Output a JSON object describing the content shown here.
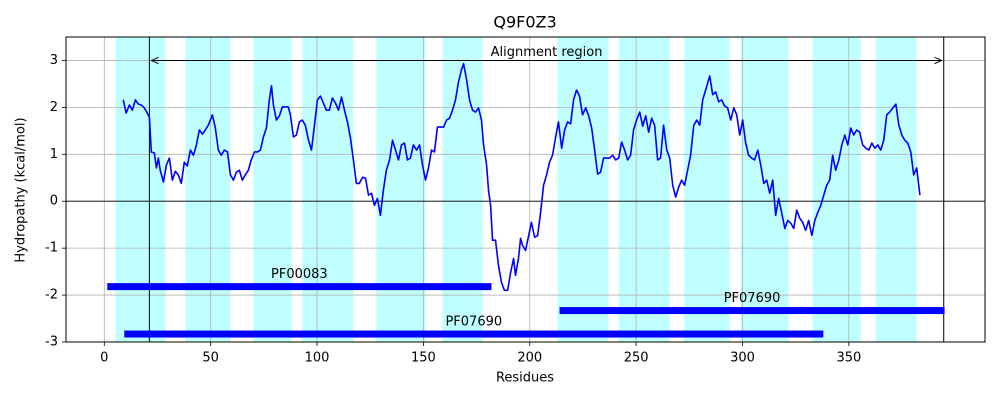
{
  "chart_data": {
    "type": "line",
    "title": "Q9F0Z3",
    "x_label": "Residues",
    "y_label": "Hydropathy (kcal/mol)",
    "xlim": [
      -18,
      414
    ],
    "ylim": [
      -3,
      3.5
    ],
    "xticks": [
      0,
      50,
      100,
      150,
      200,
      250,
      300,
      350
    ],
    "yticks": [
      -3,
      -2,
      -1,
      0,
      1,
      2,
      3
    ],
    "grid": true,
    "hline": 0,
    "region_color": "#bfffff",
    "regions": [
      [
        5.2,
        28.7
      ],
      [
        38.1,
        59.3
      ],
      [
        70.1,
        88
      ],
      [
        93.1,
        117.1
      ],
      [
        127.9,
        151
      ],
      [
        159,
        177.8
      ],
      [
        213,
        237
      ],
      [
        241.8,
        265.8
      ],
      [
        272.6,
        294
      ],
      [
        299.2,
        321.7
      ],
      [
        333,
        355.6
      ],
      [
        362.7,
        381.9
      ]
    ],
    "alignment_region": {
      "label": "Alignment region",
      "start": 21.2,
      "end": 394.6,
      "y": 3
    },
    "domain_color": "#0000ff",
    "domains": [
      {
        "label": "PF00083",
        "start": 1.4,
        "end": 182,
        "y": -1.82
      },
      {
        "label": "PF07690",
        "start": 214,
        "end": 395,
        "y": -2.33
      },
      {
        "label": "PF07690",
        "start": 9.4,
        "end": 338,
        "y": -2.83
      }
    ],
    "x": [
      8.9,
      10.3,
      11.8,
      13.2,
      14.6,
      16.0,
      17.4,
      18.8,
      20.2,
      21.2,
      22.1,
      23.5,
      24.5,
      25.4,
      26.3,
      27.8,
      29.2,
      30.6,
      32.0,
      33.4,
      34.8,
      36.2,
      37.6,
      39.0,
      40.5,
      41.9,
      43.3,
      44.7,
      46.1,
      47.5,
      48.9,
      50.8,
      52.2,
      53.6,
      55.0,
      56.4,
      57.9,
      59.3,
      60.7,
      62.1,
      63.5,
      64.9,
      66.3,
      67.7,
      69.1,
      70.6,
      72.0,
      73.4,
      74.8,
      76.2,
      77.6,
      78.6,
      79.5,
      80.9,
      82.3,
      83.7,
      85.1,
      86.5,
      87.5,
      88.9,
      90.3,
      91.7,
      93.1,
      94.5,
      96.0,
      97.4,
      98.8,
      100.2,
      101.6,
      103.0,
      104.4,
      105.8,
      107.2,
      108.7,
      110.1,
      111.5,
      112.9,
      114.3,
      115.7,
      117.1,
      118.5,
      119.9,
      121.4,
      122.8,
      124.2,
      125.6,
      127.0,
      128.4,
      129.8,
      131.2,
      132.6,
      134.1,
      135.5,
      136.9,
      138.3,
      139.7,
      141.1,
      142.5,
      143.9,
      145.3,
      146.8,
      148.2,
      149.6,
      151.0,
      152.4,
      153.8,
      155.2,
      156.6,
      158.0,
      159.5,
      160.9,
      162.3,
      163.7,
      165.1,
      166.5,
      167.9,
      168.9,
      170.3,
      171.7,
      173.1,
      174.5,
      175.9,
      177.3,
      178.3,
      179.7,
      180.6,
      181.6,
      182.5,
      183.9,
      185.3,
      186.7,
      188.1,
      189.6,
      191.0,
      192.4,
      193.3,
      194.7,
      195.7,
      196.6,
      198.0,
      199.4,
      200.8,
      202.3,
      203.7,
      205.1,
      206.5,
      207.9,
      209.3,
      210.7,
      212.1,
      213.5,
      215.0,
      216.4,
      217.8,
      219.2,
      220.6,
      222.0,
      223.4,
      224.8,
      226.3,
      227.7,
      229.1,
      230.5,
      231.9,
      233.3,
      234.7,
      236.1,
      237.5,
      239.0,
      240.4,
      241.8,
      243.2,
      244.6,
      246.0,
      247.4,
      248.8,
      250.2,
      251.7,
      253.1,
      254.5,
      255.9,
      257.3,
      258.7,
      260.1,
      261.5,
      262.9,
      264.4,
      265.8,
      267.2,
      268.6,
      270.0,
      271.4,
      272.8,
      274.2,
      275.6,
      277.1,
      278.5,
      279.9,
      281.3,
      282.7,
      284.6,
      286.0,
      287.4,
      288.8,
      290.2,
      291.6,
      293.0,
      294.5,
      295.9,
      297.3,
      298.7,
      300.1,
      301.5,
      302.9,
      304.3,
      305.7,
      307.2,
      308.6,
      310.0,
      311.4,
      312.8,
      314.2,
      315.6,
      317.0,
      318.4,
      319.9,
      321.3,
      322.7,
      324.1,
      325.5,
      326.9,
      328.3,
      329.7,
      331.1,
      332.6,
      334.0,
      335.4,
      336.8,
      338.2,
      339.6,
      341.0,
      342.4,
      343.8,
      345.3,
      346.7,
      348.1,
      349.5,
      350.9,
      352.3,
      353.7,
      355.1,
      356.5,
      358.0,
      359.4,
      360.8,
      362.2,
      363.6,
      365.0,
      366.4,
      367.8,
      369.2,
      370.7,
      372.1,
      373.5,
      374.9,
      376.3,
      377.7,
      379.1,
      380.5,
      381.9,
      383.4
    ],
    "series": [
      {
        "color": "#0000ff",
        "values": [
          2.16,
          1.88,
          2.05,
          1.94,
          2.16,
          2.07,
          2.05,
          1.99,
          1.88,
          1.79,
          1.05,
          1.03,
          0.71,
          0.92,
          0.66,
          0.41,
          0.77,
          0.92,
          0.45,
          0.64,
          0.56,
          0.38,
          0.83,
          0.75,
          1.09,
          0.98,
          1.2,
          1.52,
          1.43,
          1.52,
          1.62,
          1.84,
          1.56,
          1.09,
          0.98,
          1.09,
          1.05,
          0.56,
          0.45,
          0.62,
          0.66,
          0.45,
          0.56,
          0.66,
          0.88,
          1.05,
          1.05,
          1.09,
          1.37,
          1.56,
          2.16,
          2.46,
          2.05,
          1.73,
          1.82,
          2.01,
          2.01,
          2.01,
          1.84,
          1.37,
          1.41,
          1.69,
          1.73,
          1.62,
          1.3,
          1.09,
          1.62,
          2.16,
          2.24,
          2.09,
          1.94,
          1.94,
          2.2,
          2.09,
          1.94,
          2.22,
          1.94,
          1.69,
          1.35,
          0.88,
          0.38,
          0.38,
          0.51,
          0.49,
          0.13,
          0.17,
          -0.09,
          0.06,
          -0.3,
          0.24,
          0.66,
          0.88,
          1.3,
          1.09,
          0.88,
          1.2,
          1.24,
          0.88,
          0.92,
          1.2,
          1.09,
          1.2,
          0.77,
          0.45,
          0.71,
          1.09,
          1.05,
          1.58,
          1.58,
          1.58,
          1.73,
          1.77,
          1.94,
          2.16,
          2.54,
          2.8,
          2.93,
          2.59,
          2.16,
          1.94,
          1.9,
          1.99,
          1.73,
          1.2,
          0.77,
          0.24,
          -0.09,
          -0.83,
          -0.83,
          -1.37,
          -1.73,
          -1.9,
          -1.9,
          -1.52,
          -1.22,
          -1.58,
          -1.22,
          -0.79,
          -0.94,
          -1.05,
          -0.75,
          -0.45,
          -0.77,
          -0.73,
          -0.24,
          0.34,
          0.56,
          0.83,
          0.98,
          1.35,
          1.69,
          1.13,
          1.52,
          1.69,
          1.65,
          2.16,
          2.37,
          2.24,
          1.84,
          1.99,
          1.82,
          1.56,
          1.09,
          0.58,
          0.62,
          0.92,
          0.92,
          0.92,
          0.98,
          0.88,
          0.92,
          1.26,
          1.09,
          0.88,
          0.98,
          1.52,
          1.73,
          1.9,
          1.6,
          1.82,
          1.47,
          1.77,
          1.62,
          0.88,
          0.92,
          1.62,
          1.09,
          0.92,
          0.34,
          0.09,
          0.3,
          0.45,
          0.34,
          0.66,
          0.98,
          1.62,
          1.73,
          1.62,
          2.16,
          2.37,
          2.67,
          2.27,
          2.33,
          2.12,
          2.16,
          2.03,
          1.99,
          1.73,
          1.99,
          1.84,
          1.41,
          1.73,
          1.24,
          0.98,
          0.92,
          0.88,
          1.09,
          0.77,
          0.38,
          0.45,
          0.17,
          0.45,
          -0.3,
          0.06,
          -0.24,
          -0.58,
          -0.41,
          -0.47,
          -0.58,
          -0.19,
          -0.36,
          -0.45,
          -0.62,
          -0.41,
          -0.73,
          -0.41,
          -0.24,
          -0.09,
          0.13,
          0.34,
          0.45,
          0.98,
          0.66,
          0.88,
          1.2,
          1.41,
          1.2,
          1.56,
          1.41,
          1.52,
          1.47,
          1.2,
          1.13,
          1.09,
          1.24,
          1.13,
          1.2,
          1.09,
          1.3,
          1.84,
          1.9,
          1.99,
          2.07,
          1.62,
          1.41,
          1.3,
          1.24,
          1.05,
          0.56,
          0.71,
          0.13
        ]
      }
    ]
  }
}
